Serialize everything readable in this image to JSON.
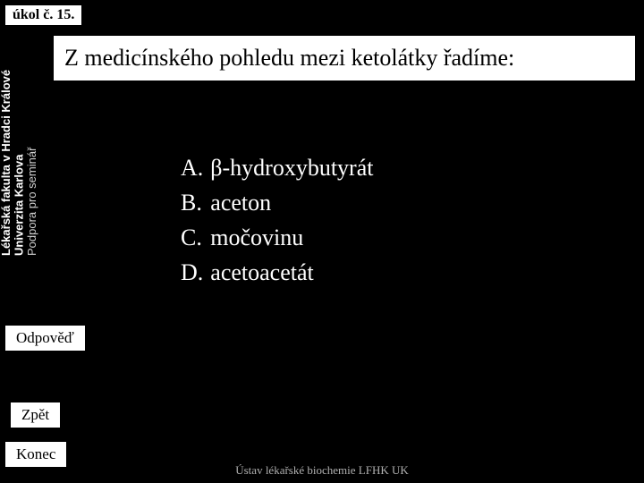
{
  "task_badge": "úkol č. 15.",
  "sidebar": {
    "line1_bold": "Lékařská fakulta v Hradci Králové",
    "line1_light": "Podpora pro seminář",
    "line2_bold": "Univerzita Karlova"
  },
  "question": "Z medicínského pohledu mezi ketolátky řadíme:",
  "answers": [
    {
      "letter": "A.",
      "text": "β-hydroxybutyrát"
    },
    {
      "letter": "B.",
      "text": "aceton"
    },
    {
      "letter": "C.",
      "text": "močovinu"
    },
    {
      "letter": "D.",
      "text": "acetoacetát"
    }
  ],
  "buttons": {
    "odpoved": "Odpověď",
    "zpet": "Zpět",
    "konec": "Konec"
  },
  "footer": "Ústav lékařské biochemie LFHK UK",
  "colors": {
    "background": "#000000",
    "box_bg": "#ffffff",
    "box_border": "#000000",
    "text_light": "#ffffff",
    "footer_text": "#b0b0b0"
  },
  "fonts": {
    "body": "Times New Roman",
    "sidebar": "Arial",
    "question_size": 26,
    "answer_size": 26,
    "badge_size": 16,
    "button_size": 17,
    "footer_size": 13
  }
}
